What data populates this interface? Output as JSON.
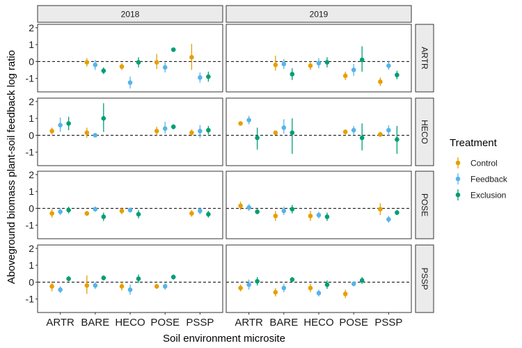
{
  "chart_data": {
    "type": "scatter",
    "subtype": "point-range (mean with error bars), faceted grid",
    "ylabel": "Aboveground biomass plant-soil feedback log ratio",
    "xlabel": "Soil environment microsite",
    "x_categories": [
      "ARTR",
      "BARE",
      "HECO",
      "POSE",
      "PSSP"
    ],
    "col_facets": [
      "2018",
      "2019"
    ],
    "row_facets": [
      "ARTR",
      "HECO",
      "POSE",
      "PSSP"
    ],
    "ylim": [
      -1.8,
      2.2
    ],
    "y_ticks": [
      -1,
      0,
      1,
      2
    ],
    "reference_line": {
      "y": 0,
      "style": "dashed"
    },
    "grid": false,
    "legend": {
      "title": "Treatment",
      "position": "right",
      "entries": [
        {
          "name": "Control",
          "color": "#E69F00"
        },
        {
          "name": "Feedback",
          "color": "#56B4E9"
        },
        {
          "name": "Exclusion",
          "color": "#009E73"
        }
      ]
    },
    "series_order": [
      "Control",
      "Feedback",
      "Exclusion"
    ],
    "panels": [
      {
        "row": "ARTR",
        "col": "2018",
        "points": {
          "ARTR": [
            null,
            null,
            null
          ],
          "BARE": [
            [
              -0.05,
              -0.3,
              0.2
            ],
            [
              -0.2,
              -0.5,
              0.1
            ],
            [
              -0.55,
              -0.75,
              -0.35
            ]
          ],
          "HECO": [
            [
              -0.3,
              -0.5,
              -0.1
            ],
            [
              -1.25,
              -1.6,
              -0.9
            ],
            [
              -0.05,
              -0.35,
              0.25
            ]
          ],
          "POSE": [
            [
              -0.05,
              -0.45,
              0.45
            ],
            [
              -0.35,
              -0.65,
              -0.05
            ],
            [
              0.7,
              0.6,
              0.8
            ]
          ],
          "PSSP": [
            [
              0.25,
              -0.5,
              1.05
            ],
            [
              -0.95,
              -1.25,
              -0.65
            ],
            [
              -0.9,
              -1.2,
              -0.6
            ]
          ]
        }
      },
      {
        "row": "ARTR",
        "col": "2019",
        "points": {
          "ARTR": [
            null,
            null,
            null
          ],
          "BARE": [
            [
              -0.2,
              -0.55,
              0.35
            ],
            [
              -0.15,
              -0.45,
              0.15
            ],
            [
              -0.75,
              -1.1,
              -0.4
            ]
          ],
          "HECO": [
            [
              -0.25,
              -0.5,
              0.0
            ],
            [
              -0.1,
              -0.4,
              0.2
            ],
            [
              -0.05,
              -0.35,
              0.25
            ]
          ],
          "POSE": [
            [
              -0.85,
              -1.1,
              -0.6
            ],
            [
              -0.5,
              -0.85,
              -0.15
            ],
            [
              0.1,
              -0.6,
              0.9
            ]
          ],
          "PSSP": [
            [
              -1.2,
              -1.45,
              -0.95
            ],
            [
              -0.25,
              -0.5,
              0.0
            ],
            [
              -0.8,
              -1.05,
              -0.55
            ]
          ]
        }
      },
      {
        "row": "HECO",
        "col": "2018",
        "points": {
          "ARTR": [
            [
              0.25,
              0.05,
              0.45
            ],
            [
              0.6,
              0.2,
              1.05
            ],
            [
              0.7,
              0.3,
              1.1
            ]
          ],
          "BARE": [
            [
              0.15,
              -0.15,
              0.45
            ],
            [
              0.0,
              -0.1,
              0.1
            ],
            [
              1.0,
              0.2,
              1.9
            ]
          ],
          "HECO": [
            null,
            null,
            null
          ],
          "POSE": [
            [
              0.25,
              0.0,
              0.5
            ],
            [
              0.4,
              0.1,
              0.8
            ],
            [
              0.5,
              0.35,
              0.65
            ]
          ],
          "PSSP": [
            [
              0.15,
              -0.05,
              0.35
            ],
            [
              0.25,
              -0.15,
              0.6
            ],
            [
              0.3,
              0.05,
              0.55
            ]
          ]
        }
      },
      {
        "row": "HECO",
        "col": "2019",
        "points": {
          "ARTR": [
            [
              0.7,
              0.6,
              0.8
            ],
            [
              0.9,
              0.65,
              1.15
            ],
            [
              -0.15,
              -0.85,
              0.45
            ]
          ],
          "BARE": [
            [
              0.15,
              0.05,
              0.25
            ],
            [
              0.45,
              0.1,
              0.95
            ],
            [
              0.15,
              -1.1,
              1.0
            ]
          ],
          "HECO": [
            null,
            null,
            null
          ],
          "POSE": [
            [
              0.2,
              0.05,
              0.35
            ],
            [
              0.3,
              0.05,
              0.55
            ],
            [
              -0.15,
              -0.9,
              0.7
            ]
          ],
          "PSSP": [
            [
              0.05,
              -0.1,
              0.2
            ],
            [
              0.3,
              0.0,
              0.6
            ],
            [
              -0.25,
              -1.1,
              0.55
            ]
          ]
        }
      },
      {
        "row": "POSE",
        "col": "2018",
        "points": {
          "ARTR": [
            [
              -0.3,
              -0.55,
              -0.05
            ],
            [
              -0.2,
              -0.4,
              0.0
            ],
            [
              -0.1,
              -0.3,
              0.1
            ]
          ],
          "BARE": [
            [
              -0.3,
              -0.45,
              -0.15
            ],
            [
              -0.05,
              -0.2,
              0.1
            ],
            [
              -0.5,
              -0.75,
              -0.25
            ]
          ],
          "HECO": [
            [
              -0.15,
              -0.35,
              0.05
            ],
            [
              -0.1,
              -0.25,
              0.05
            ],
            [
              -0.35,
              -0.6,
              -0.1
            ]
          ],
          "POSE": [
            null,
            null,
            null
          ],
          "PSSP": [
            [
              -0.3,
              -0.5,
              -0.1
            ],
            [
              -0.15,
              -0.35,
              0.05
            ],
            [
              -0.35,
              -0.55,
              -0.15
            ]
          ]
        }
      },
      {
        "row": "POSE",
        "col": "2019",
        "points": {
          "ARTR": [
            [
              0.15,
              -0.1,
              0.4
            ],
            [
              0.05,
              -0.15,
              0.25
            ],
            [
              -0.2,
              -0.35,
              -0.05
            ]
          ],
          "BARE": [
            [
              -0.45,
              -0.75,
              -0.15
            ],
            [
              -0.15,
              -0.4,
              0.1
            ],
            [
              -0.05,
              -0.3,
              0.2
            ]
          ],
          "HECO": [
            [
              -0.45,
              -0.75,
              -0.15
            ],
            [
              -0.4,
              -0.6,
              -0.2
            ],
            [
              -0.5,
              -0.75,
              -0.25
            ]
          ],
          "POSE": [
            null,
            null,
            null
          ],
          "PSSP": [
            [
              -0.05,
              -0.4,
              0.3
            ],
            [
              -0.65,
              -0.85,
              -0.45
            ],
            [
              -0.25,
              -0.4,
              -0.1
            ]
          ]
        }
      },
      {
        "row": "PSSP",
        "col": "2018",
        "points": {
          "ARTR": [
            [
              -0.25,
              -0.55,
              0.05
            ],
            [
              -0.45,
              -0.65,
              -0.25
            ],
            [
              0.2,
              0.05,
              0.35
            ]
          ],
          "BARE": [
            [
              -0.2,
              -0.7,
              0.4
            ],
            [
              -0.2,
              -0.4,
              0.0
            ],
            [
              0.25,
              0.1,
              0.4
            ]
          ],
          "HECO": [
            [
              -0.25,
              -0.5,
              0.0
            ],
            [
              -0.45,
              -0.75,
              -0.15
            ],
            [
              0.2,
              -0.05,
              0.45
            ]
          ],
          "POSE": [
            [
              -0.25,
              -0.4,
              -0.1
            ],
            [
              -0.25,
              -0.45,
              -0.05
            ],
            [
              0.3,
              0.15,
              0.45
            ]
          ],
          "PSSP": [
            null,
            null,
            null
          ]
        }
      },
      {
        "row": "PSSP",
        "col": "2019",
        "points": {
          "ARTR": [
            [
              -0.35,
              -0.55,
              -0.15
            ],
            [
              -0.15,
              -0.45,
              0.15
            ],
            [
              0.05,
              -0.2,
              0.3
            ]
          ],
          "BARE": [
            [
              -0.6,
              -0.85,
              -0.35
            ],
            [
              -0.35,
              -0.6,
              -0.1
            ],
            [
              0.15,
              0.0,
              0.3
            ]
          ],
          "HECO": [
            [
              -0.35,
              -0.6,
              -0.1
            ],
            [
              -0.65,
              -0.85,
              -0.45
            ],
            [
              -0.15,
              -0.4,
              0.1
            ]
          ],
          "POSE": [
            [
              -0.7,
              -0.95,
              -0.45
            ],
            [
              -0.1,
              -0.25,
              0.05
            ],
            [
              0.1,
              -0.1,
              0.3
            ]
          ],
          "PSSP": [
            null,
            null,
            null
          ]
        }
      }
    ]
  }
}
